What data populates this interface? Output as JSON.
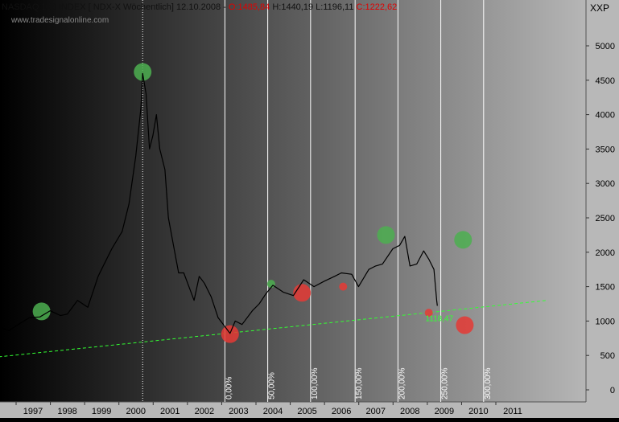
{
  "header": {
    "instrument": "NASDAQ 100 INDEX [ NDX-X Wöchentlich]",
    "date": "12.10.2008",
    "open_label": "O:1485,84",
    "high_low": "H:1440,19 L:1196,11",
    "close_label": "C:1222,62",
    "website": "www.tradesignalonline.com",
    "unit": "XXP"
  },
  "colors": {
    "price_line": "#000000",
    "trend_line": "#33ff33",
    "signal_green": "#4caf50",
    "signal_red": "#e53935",
    "cycle_line": "#ffffff",
    "annotation": "#33ff33"
  },
  "chart_data": {
    "type": "line",
    "title": "",
    "xlabel": "",
    "ylabel": "",
    "ylim": [
      -200,
      5650
    ],
    "xlim": [
      1996.0,
      2012.0
    ],
    "y_ticks": [
      0,
      500,
      1000,
      1500,
      2000,
      2500,
      3000,
      3500,
      4000,
      4500,
      5000
    ],
    "x_ticks": [
      {
        "label": "1997",
        "x": 1997.0
      },
      {
        "label": "1998",
        "x": 1998.0
      },
      {
        "label": "1999",
        "x": 1999.0
      },
      {
        "label": "2000",
        "x": 2000.0
      },
      {
        "label": "2001",
        "x": 2001.0
      },
      {
        "label": "2002",
        "x": 2002.0
      },
      {
        "label": "2003",
        "x": 2003.0
      },
      {
        "label": "2004",
        "x": 2004.0
      },
      {
        "label": "2005",
        "x": 2005.0
      },
      {
        "label": "2006",
        "x": 2006.0
      },
      {
        "label": "2007",
        "x": 2007.0
      },
      {
        "label": "2008",
        "x": 2008.0
      },
      {
        "label": "2009",
        "x": 2009.0
      },
      {
        "label": "2010",
        "x": 2010.0
      },
      {
        "label": "2011",
        "x": 2011.0
      }
    ],
    "series": [
      {
        "points": [
          [
            1996.0,
            920
          ],
          [
            1996.3,
            860
          ],
          [
            1996.6,
            960
          ],
          [
            1996.9,
            1050
          ],
          [
            1997.2,
            1060
          ],
          [
            1997.5,
            1150
          ],
          [
            1997.8,
            1080
          ],
          [
            1998.0,
            1100
          ],
          [
            1998.3,
            1300
          ],
          [
            1998.6,
            1200
          ],
          [
            1998.9,
            1650
          ],
          [
            1999.0,
            1750
          ],
          [
            1999.3,
            2050
          ],
          [
            1999.6,
            2300
          ],
          [
            1999.8,
            2700
          ],
          [
            2000.0,
            3400
          ],
          [
            2000.15,
            4100
          ],
          [
            2000.2,
            4600
          ],
          [
            2000.3,
            4300
          ],
          [
            2000.4,
            3500
          ],
          [
            2000.5,
            3700
          ],
          [
            2000.6,
            4000
          ],
          [
            2000.7,
            3500
          ],
          [
            2000.85,
            3200
          ],
          [
            2000.95,
            2500
          ],
          [
            2001.1,
            2100
          ],
          [
            2001.25,
            1700
          ],
          [
            2001.4,
            1700
          ],
          [
            2001.55,
            1500
          ],
          [
            2001.7,
            1300
          ],
          [
            2001.85,
            1650
          ],
          [
            2002.0,
            1550
          ],
          [
            2002.2,
            1350
          ],
          [
            2002.4,
            1050
          ],
          [
            2002.6,
            920
          ],
          [
            2002.75,
            820
          ],
          [
            2002.9,
            1000
          ],
          [
            2003.1,
            950
          ],
          [
            2003.4,
            1150
          ],
          [
            2003.6,
            1250
          ],
          [
            2003.8,
            1400
          ],
          [
            2004.0,
            1520
          ],
          [
            2004.3,
            1420
          ],
          [
            2004.6,
            1370
          ],
          [
            2004.9,
            1600
          ],
          [
            2005.2,
            1500
          ],
          [
            2005.5,
            1580
          ],
          [
            2005.8,
            1650
          ],
          [
            2006.0,
            1700
          ],
          [
            2006.3,
            1680
          ],
          [
            2006.5,
            1500
          ],
          [
            2006.8,
            1750
          ],
          [
            2007.0,
            1800
          ],
          [
            2007.2,
            1830
          ],
          [
            2007.5,
            2050
          ],
          [
            2007.7,
            2100
          ],
          [
            2007.85,
            2230
          ],
          [
            2008.0,
            1800
          ],
          [
            2008.2,
            1830
          ],
          [
            2008.4,
            2020
          ],
          [
            2008.55,
            1900
          ],
          [
            2008.7,
            1750
          ],
          [
            2008.78,
            1300
          ],
          [
            2008.8,
            1222
          ]
        ]
      },
      {
        "type": "trendline",
        "points": [
          [
            1996.0,
            480
          ],
          [
            2012.0,
            1300
          ]
        ]
      }
    ],
    "cycle_lines": [
      {
        "x": 2002.6,
        "label": "0,00%"
      },
      {
        "x": 2003.85,
        "label": "50,00%"
      },
      {
        "x": 2005.1,
        "label": "100,00%"
      },
      {
        "x": 2006.4,
        "label": "150,00%"
      },
      {
        "x": 2007.65,
        "label": "200,00%"
      },
      {
        "x": 2008.9,
        "label": "250,00%"
      },
      {
        "x": 2010.15,
        "label": "300,00%"
      }
    ],
    "reference_line": {
      "x": 2000.2
    },
    "markers": [
      {
        "x": 1997.25,
        "y": 1140,
        "color": "green",
        "size": "large"
      },
      {
        "x": 2000.2,
        "y": 4620,
        "color": "green",
        "size": "large"
      },
      {
        "x": 2002.75,
        "y": 810,
        "color": "red",
        "size": "large"
      },
      {
        "x": 2003.95,
        "y": 1540,
        "color": "green",
        "size": "small"
      },
      {
        "x": 2004.85,
        "y": 1410,
        "color": "red",
        "size": "large"
      },
      {
        "x": 2006.05,
        "y": 1500,
        "color": "red",
        "size": "small"
      },
      {
        "x": 2007.3,
        "y": 2250,
        "color": "green",
        "size": "large"
      },
      {
        "x": 2008.55,
        "y": 1120,
        "color": "red",
        "size": "small"
      },
      {
        "x": 2009.55,
        "y": 2180,
        "color": "green",
        "size": "large"
      },
      {
        "x": 2009.6,
        "y": 940,
        "color": "red",
        "size": "large"
      }
    ],
    "annotations": [
      {
        "x": 2008.45,
        "y": 1000,
        "text": "1118,47"
      }
    ],
    "grid": false,
    "legend": "none"
  }
}
